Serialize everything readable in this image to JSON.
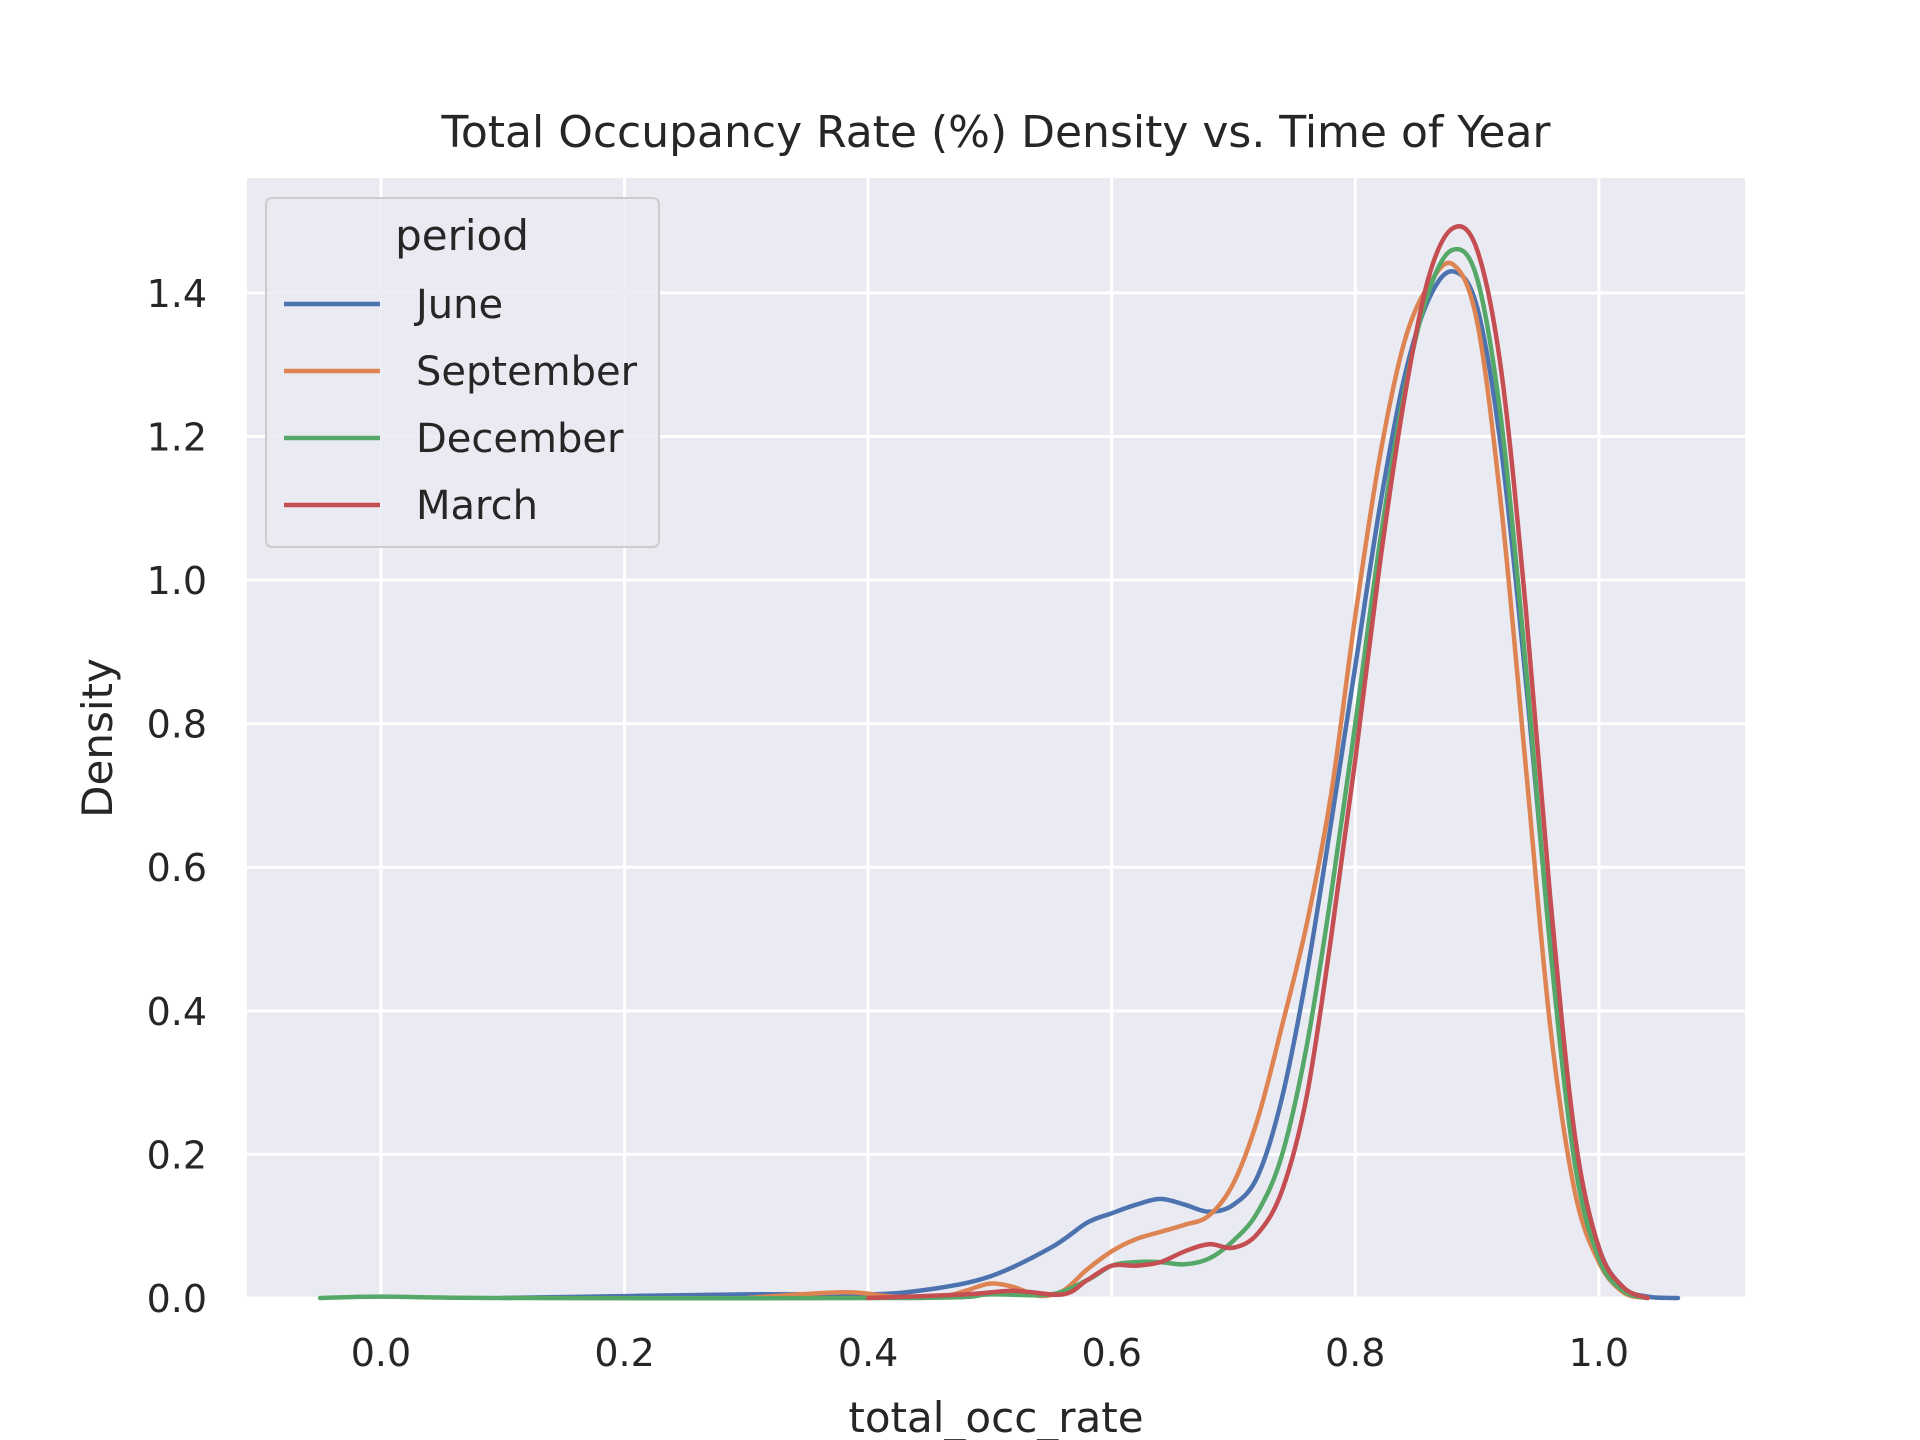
{
  "chart_data": {
    "type": "line",
    "title": "Total Occupancy Rate (%) Density vs. Time of Year",
    "xlabel": "total_occ_rate",
    "ylabel": "Density",
    "xlim": [
      -0.11,
      1.12
    ],
    "ylim": [
      0.0,
      1.56
    ],
    "xticks": [
      0.0,
      0.2,
      0.4,
      0.6,
      0.8,
      1.0
    ],
    "xtick_labels": [
      "0.0",
      "0.2",
      "0.4",
      "0.6",
      "0.8",
      "1.0"
    ],
    "yticks": [
      0.0,
      0.2,
      0.4,
      0.6,
      0.8,
      1.0,
      1.2,
      1.4
    ],
    "ytick_labels": [
      "0.0",
      "0.2",
      "0.4",
      "0.6",
      "0.8",
      "1.0",
      "1.2",
      "1.4"
    ],
    "grid": true,
    "background": "#eaeaf2",
    "legend": {
      "title": "period",
      "placement": "top-left"
    },
    "series": [
      {
        "name": "June",
        "color": "#4c72b0",
        "points": [
          [
            0.1,
            0.0
          ],
          [
            0.3,
            0.005
          ],
          [
            0.4,
            0.005
          ],
          [
            0.45,
            0.012
          ],
          [
            0.5,
            0.03
          ],
          [
            0.55,
            0.07
          ],
          [
            0.58,
            0.105
          ],
          [
            0.6,
            0.118
          ],
          [
            0.62,
            0.13
          ],
          [
            0.64,
            0.138
          ],
          [
            0.66,
            0.13
          ],
          [
            0.68,
            0.12
          ],
          [
            0.7,
            0.13
          ],
          [
            0.72,
            0.17
          ],
          [
            0.74,
            0.28
          ],
          [
            0.76,
            0.45
          ],
          [
            0.78,
            0.66
          ],
          [
            0.8,
            0.88
          ],
          [
            0.82,
            1.1
          ],
          [
            0.84,
            1.28
          ],
          [
            0.86,
            1.39
          ],
          [
            0.88,
            1.43
          ],
          [
            0.9,
            1.38
          ],
          [
            0.92,
            1.18
          ],
          [
            0.94,
            0.86
          ],
          [
            0.96,
            0.5
          ],
          [
            0.98,
            0.22
          ],
          [
            1.0,
            0.07
          ],
          [
            1.02,
            0.015
          ],
          [
            1.04,
            0.002
          ],
          [
            1.065,
            0.0
          ]
        ]
      },
      {
        "name": "September",
        "color": "#dd8452",
        "points": [
          [
            0.3,
            0.0
          ],
          [
            0.38,
            0.008
          ],
          [
            0.42,
            0.002
          ],
          [
            0.46,
            0.002
          ],
          [
            0.48,
            0.01
          ],
          [
            0.5,
            0.02
          ],
          [
            0.52,
            0.015
          ],
          [
            0.54,
            0.003
          ],
          [
            0.56,
            0.01
          ],
          [
            0.58,
            0.04
          ],
          [
            0.6,
            0.065
          ],
          [
            0.62,
            0.082
          ],
          [
            0.64,
            0.092
          ],
          [
            0.66,
            0.102
          ],
          [
            0.68,
            0.115
          ],
          [
            0.7,
            0.16
          ],
          [
            0.72,
            0.25
          ],
          [
            0.74,
            0.38
          ],
          [
            0.76,
            0.52
          ],
          [
            0.78,
            0.7
          ],
          [
            0.8,
            0.95
          ],
          [
            0.82,
            1.17
          ],
          [
            0.84,
            1.33
          ],
          [
            0.86,
            1.41
          ],
          [
            0.88,
            1.44
          ],
          [
            0.9,
            1.36
          ],
          [
            0.92,
            1.1
          ],
          [
            0.94,
            0.74
          ],
          [
            0.96,
            0.38
          ],
          [
            0.98,
            0.15
          ],
          [
            1.0,
            0.05
          ],
          [
            1.02,
            0.008
          ],
          [
            1.04,
            0.0
          ]
        ]
      },
      {
        "name": "December",
        "color": "#55a868",
        "points": [
          [
            -0.05,
            0.0
          ],
          [
            0.0,
            0.002
          ],
          [
            0.1,
            0.0
          ],
          [
            0.44,
            0.0
          ],
          [
            0.5,
            0.005
          ],
          [
            0.55,
            0.005
          ],
          [
            0.58,
            0.025
          ],
          [
            0.6,
            0.045
          ],
          [
            0.62,
            0.05
          ],
          [
            0.64,
            0.05
          ],
          [
            0.66,
            0.047
          ],
          [
            0.68,
            0.055
          ],
          [
            0.7,
            0.08
          ],
          [
            0.72,
            0.12
          ],
          [
            0.74,
            0.2
          ],
          [
            0.76,
            0.35
          ],
          [
            0.78,
            0.56
          ],
          [
            0.8,
            0.8
          ],
          [
            0.82,
            1.05
          ],
          [
            0.84,
            1.26
          ],
          [
            0.86,
            1.4
          ],
          [
            0.88,
            1.46
          ],
          [
            0.9,
            1.42
          ],
          [
            0.92,
            1.22
          ],
          [
            0.94,
            0.88
          ],
          [
            0.96,
            0.49
          ],
          [
            0.98,
            0.19
          ],
          [
            1.0,
            0.055
          ],
          [
            1.02,
            0.01
          ],
          [
            1.04,
            0.0
          ]
        ]
      },
      {
        "name": "March",
        "color": "#c44e52",
        "points": [
          [
            0.4,
            0.0
          ],
          [
            0.48,
            0.005
          ],
          [
            0.52,
            0.01
          ],
          [
            0.56,
            0.005
          ],
          [
            0.58,
            0.025
          ],
          [
            0.6,
            0.045
          ],
          [
            0.62,
            0.045
          ],
          [
            0.64,
            0.05
          ],
          [
            0.66,
            0.065
          ],
          [
            0.68,
            0.075
          ],
          [
            0.7,
            0.07
          ],
          [
            0.72,
            0.09
          ],
          [
            0.74,
            0.15
          ],
          [
            0.76,
            0.28
          ],
          [
            0.78,
            0.5
          ],
          [
            0.8,
            0.75
          ],
          [
            0.82,
            1.02
          ],
          [
            0.84,
            1.25
          ],
          [
            0.86,
            1.42
          ],
          [
            0.88,
            1.49
          ],
          [
            0.9,
            1.46
          ],
          [
            0.92,
            1.29
          ],
          [
            0.94,
            0.96
          ],
          [
            0.96,
            0.56
          ],
          [
            0.98,
            0.23
          ],
          [
            1.0,
            0.07
          ],
          [
            1.02,
            0.015
          ],
          [
            1.04,
            0.0
          ]
        ]
      }
    ]
  }
}
